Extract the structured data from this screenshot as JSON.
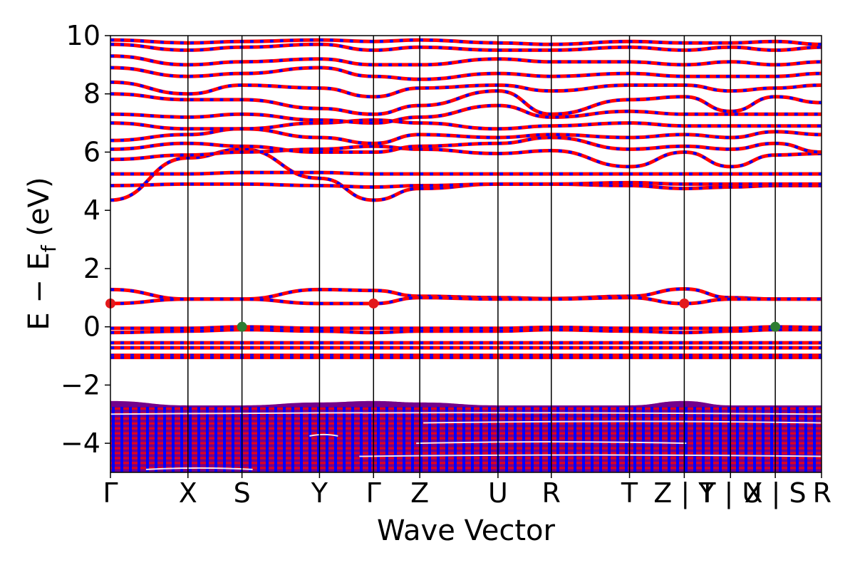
{
  "chart_data": {
    "type": "line",
    "title": "",
    "xlabel": "Wave Vector",
    "ylabel": "E − E_f (eV)",
    "ylabel_parts": {
      "main": "E − E",
      "sub": "f",
      "unit": " (eV)"
    },
    "ylim": [
      -5,
      10
    ],
    "yticks": [
      10,
      8,
      6,
      4,
      2,
      0,
      -2,
      -4
    ],
    "ytick_labels": [
      "10",
      "8",
      "6",
      "4",
      "2",
      "0",
      "−2",
      "−4"
    ],
    "kpath_ticks": [
      {
        "label": "Γ",
        "x": 0
      },
      {
        "label": "X",
        "x": 1.09
      },
      {
        "label": "S",
        "x": 1.85
      },
      {
        "label": "Y",
        "x": 2.94
      },
      {
        "label": "Γ",
        "x": 3.7
      },
      {
        "label": "Z",
        "x": 4.35
      },
      {
        "label": "U",
        "x": 5.45
      },
      {
        "label": "R",
        "x": 6.2
      },
      {
        "label": "T",
        "x": 7.3
      },
      {
        "label": "Z | Y",
        "x": 8.07
      },
      {
        "label": "T | U",
        "x": 8.72
      },
      {
        "label": "X | S",
        "x": 9.35
      },
      {
        "label": "R",
        "x": 10.0
      }
    ],
    "xlim": [
      0,
      10.0
    ],
    "grid": false,
    "spin_colors": {
      "up": "#ff0000",
      "down": "#0000ff"
    },
    "band_edges": {
      "cbm": {
        "color": "#e31a1c",
        "energy": 0.8,
        "kpoints": [
          0,
          3.7,
          8.07
        ]
      },
      "vbm": {
        "color": "#2e7d32",
        "energy": 0.0,
        "kpoints": [
          1.85,
          9.35
        ]
      }
    },
    "series": [
      {
        "name": "",
        "x": [
          0,
          1.09,
          1.85,
          2.94,
          3.7,
          4.35,
          5.45,
          6.2,
          7.3,
          8.07,
          8.72,
          9.35,
          10.0
        ],
        "values": [
          4.35,
          5.8,
          6.1,
          5.1,
          4.35,
          4.75,
          4.9,
          4.9,
          4.85,
          4.75,
          4.8,
          4.85,
          4.85
        ]
      },
      {
        "name": "",
        "x": [
          0,
          1.09,
          1.85,
          2.94,
          3.7,
          4.35,
          5.45,
          6.2,
          7.3,
          8.07,
          8.72,
          9.35,
          10.0
        ],
        "values": [
          4.85,
          4.9,
          4.9,
          4.85,
          4.8,
          4.85,
          4.9,
          4.9,
          4.95,
          4.9,
          4.9,
          4.9,
          4.9
        ]
      },
      {
        "name": "",
        "x": [
          0,
          1.09,
          1.85,
          2.94,
          3.7,
          4.35,
          5.45,
          6.2,
          7.3,
          8.07,
          8.72,
          9.35,
          10.0
        ],
        "values": [
          5.25,
          5.25,
          5.3,
          5.3,
          5.25,
          5.25,
          5.25,
          5.25,
          5.25,
          5.25,
          5.25,
          5.25,
          5.25
        ]
      },
      {
        "name": "",
        "x": [
          0,
          1.09,
          1.85,
          2.94,
          3.7,
          4.35,
          5.45,
          6.2,
          7.3,
          8.07,
          8.72,
          9.35,
          10.0
        ],
        "values": [
          5.75,
          5.9,
          6.0,
          6.1,
          6.2,
          6.1,
          5.95,
          6.05,
          5.5,
          6.0,
          5.5,
          5.9,
          5.95
        ]
      },
      {
        "name": "",
        "x": [
          0,
          1.09,
          1.85,
          2.94,
          3.7,
          4.35,
          5.45,
          6.2,
          7.3,
          8.07,
          8.72,
          9.35,
          10.0
        ],
        "values": [
          6.1,
          6.3,
          6.2,
          6.0,
          6.0,
          6.2,
          6.3,
          6.5,
          6.1,
          6.2,
          6.1,
          6.3,
          6.0
        ]
      },
      {
        "name": "",
        "x": [
          0,
          1.09,
          1.85,
          2.94,
          3.7,
          4.35,
          5.45,
          6.2,
          7.3,
          8.07,
          8.72,
          9.35,
          10.0
        ],
        "values": [
          6.4,
          6.6,
          6.8,
          6.5,
          6.3,
          6.6,
          6.5,
          6.6,
          6.5,
          6.6,
          6.5,
          6.7,
          6.6
        ]
      },
      {
        "name": "",
        "x": [
          0,
          1.09,
          1.85,
          2.94,
          3.7,
          4.35,
          5.45,
          6.2,
          7.3,
          8.07,
          8.72,
          9.35,
          10.0
        ],
        "values": [
          7.0,
          6.8,
          6.8,
          7.0,
          7.1,
          7.0,
          6.8,
          6.9,
          7.0,
          6.9,
          6.9,
          6.9,
          6.9
        ]
      },
      {
        "name": "",
        "x": [
          0,
          1.09,
          1.85,
          2.94,
          3.7,
          4.35,
          5.45,
          6.2,
          7.3,
          8.07,
          8.72,
          9.35,
          10.0
        ],
        "values": [
          7.3,
          7.2,
          7.3,
          7.1,
          7.0,
          7.2,
          7.6,
          7.2,
          7.4,
          7.3,
          7.3,
          7.3,
          7.3
        ]
      },
      {
        "name": "",
        "x": [
          0,
          1.09,
          1.85,
          2.94,
          3.7,
          4.35,
          5.45,
          6.2,
          7.3,
          8.07,
          8.72,
          9.35,
          10.0
        ],
        "values": [
          8.0,
          7.8,
          7.8,
          7.5,
          7.3,
          7.6,
          8.1,
          7.3,
          7.8,
          7.9,
          7.4,
          7.9,
          7.7
        ]
      },
      {
        "name": "",
        "x": [
          0,
          1.09,
          1.85,
          2.94,
          3.7,
          4.35,
          5.45,
          6.2,
          7.3,
          8.07,
          8.72,
          9.35,
          10.0
        ],
        "values": [
          8.4,
          8.0,
          8.3,
          8.2,
          7.9,
          8.2,
          8.3,
          8.1,
          8.3,
          8.3,
          8.1,
          8.2,
          8.3
        ]
      },
      {
        "name": "",
        "x": [
          0,
          1.09,
          1.85,
          2.94,
          3.7,
          4.35,
          5.45,
          6.2,
          7.3,
          8.07,
          8.72,
          9.35,
          10.0
        ],
        "values": [
          8.9,
          8.6,
          8.7,
          8.9,
          8.6,
          8.5,
          8.7,
          8.6,
          8.7,
          8.6,
          8.6,
          8.6,
          8.7
        ]
      },
      {
        "name": "",
        "x": [
          0,
          1.09,
          1.85,
          2.94,
          3.7,
          4.35,
          5.45,
          6.2,
          7.3,
          8.07,
          8.72,
          9.35,
          10.0
        ],
        "values": [
          9.3,
          9.0,
          9.1,
          9.2,
          9.0,
          9.0,
          9.2,
          9.1,
          9.1,
          9.0,
          9.1,
          9.0,
          9.1
        ]
      },
      {
        "name": "",
        "x": [
          0,
          1.09,
          1.85,
          2.94,
          3.7,
          4.35,
          5.45,
          6.2,
          7.3,
          8.07,
          8.72,
          9.35,
          10.0
        ],
        "values": [
          9.7,
          9.5,
          9.6,
          9.7,
          9.5,
          9.6,
          9.5,
          9.5,
          9.6,
          9.5,
          9.6,
          9.5,
          9.6
        ]
      },
      {
        "name": "",
        "x": [
          0,
          1.09,
          1.85,
          2.94,
          3.7,
          4.35,
          5.45,
          6.2,
          7.3,
          8.07,
          8.72,
          9.35,
          10.0
        ],
        "values": [
          9.85,
          9.75,
          9.8,
          9.85,
          9.8,
          9.85,
          9.75,
          9.7,
          9.8,
          9.75,
          9.75,
          9.8,
          9.7
        ]
      },
      {
        "name": "",
        "x": [
          0,
          1.09,
          1.85,
          2.94,
          3.7,
          4.35,
          5.45,
          6.2,
          7.3,
          8.07,
          8.72,
          9.35,
          10.0
        ],
        "values": [
          1.28,
          0.95,
          0.95,
          1.28,
          1.25,
          1.05,
          1.0,
          0.97,
          1.05,
          1.3,
          1.0,
          0.95,
          0.95
        ]
      },
      {
        "name": "",
        "x": [
          0,
          1.09,
          1.85,
          2.94,
          3.7,
          4.35,
          5.45,
          6.2,
          7.3,
          8.07,
          8.72,
          9.35,
          10.0
        ],
        "values": [
          0.8,
          0.95,
          0.95,
          0.8,
          0.8,
          1.0,
          0.95,
          0.95,
          1.0,
          0.8,
          0.95,
          0.95,
          0.95
        ]
      },
      {
        "name": "",
        "x": [
          0,
          1.09,
          1.85,
          2.94,
          3.7,
          4.35,
          5.45,
          6.2,
          7.3,
          8.07,
          8.72,
          9.35,
          10.0
        ],
        "values": [
          -0.05,
          -0.05,
          0.0,
          -0.05,
          -0.05,
          -0.05,
          -0.05,
          -0.02,
          -0.05,
          -0.05,
          -0.05,
          0.0,
          -0.02
        ]
      },
      {
        "name": "",
        "x": [
          0,
          1.09,
          1.85,
          2.94,
          3.7,
          4.35,
          5.45,
          6.2,
          7.3,
          8.07,
          8.72,
          9.35,
          10.0
        ],
        "values": [
          -0.2,
          -0.15,
          -0.1,
          -0.15,
          -0.2,
          -0.15,
          -0.15,
          -0.1,
          -0.15,
          -0.2,
          -0.15,
          -0.1,
          -0.1
        ]
      },
      {
        "name": "",
        "x": [
          0,
          1.09,
          1.85,
          2.94,
          3.7,
          4.35,
          5.45,
          6.2,
          7.3,
          8.07,
          8.72,
          9.35,
          10.0
        ],
        "values": [
          -0.55,
          -0.55,
          -0.55,
          -0.55,
          -0.55,
          -0.55,
          -0.55,
          -0.55,
          -0.55,
          -0.55,
          -0.55,
          -0.55,
          -0.55
        ]
      },
      {
        "name": "",
        "x": [
          0,
          1.09,
          1.85,
          2.94,
          3.7,
          4.35,
          5.45,
          6.2,
          7.3,
          8.07,
          8.72,
          9.35,
          10.0
        ],
        "values": [
          -0.72,
          -0.72,
          -0.72,
          -0.72,
          -0.72,
          -0.72,
          -0.72,
          -0.72,
          -0.72,
          -0.72,
          -0.72,
          -0.72,
          -0.72
        ]
      },
      {
        "name": "",
        "x": [
          0,
          1.09,
          1.85,
          2.94,
          3.7,
          4.35,
          5.45,
          6.2,
          7.3,
          8.07,
          8.72,
          9.35,
          10.0
        ],
        "values": [
          -0.98,
          -0.98,
          -0.98,
          -0.98,
          -0.98,
          -0.98,
          -0.98,
          -0.98,
          -0.98,
          -0.98,
          -0.98,
          -0.98,
          -0.98
        ]
      },
      {
        "name": "",
        "x": [
          0,
          1.09,
          1.85,
          2.94,
          3.7,
          4.35,
          5.45,
          6.2,
          7.3,
          8.07,
          8.72,
          9.35,
          10.0
        ],
        "values": [
          -1.05,
          -1.05,
          -1.05,
          -1.05,
          -1.05,
          -1.05,
          -1.05,
          -1.05,
          -1.05,
          -1.05,
          -1.05,
          -1.05,
          -1.05
        ]
      }
    ],
    "dense_valence_region": {
      "top": [
        -2.55,
        -2.7,
        -2.7,
        -2.6,
        -2.55,
        -2.6,
        -2.7,
        -2.7,
        -2.7,
        -2.55,
        -2.7,
        -2.7,
        -2.7
      ],
      "bottom": -5
    }
  }
}
